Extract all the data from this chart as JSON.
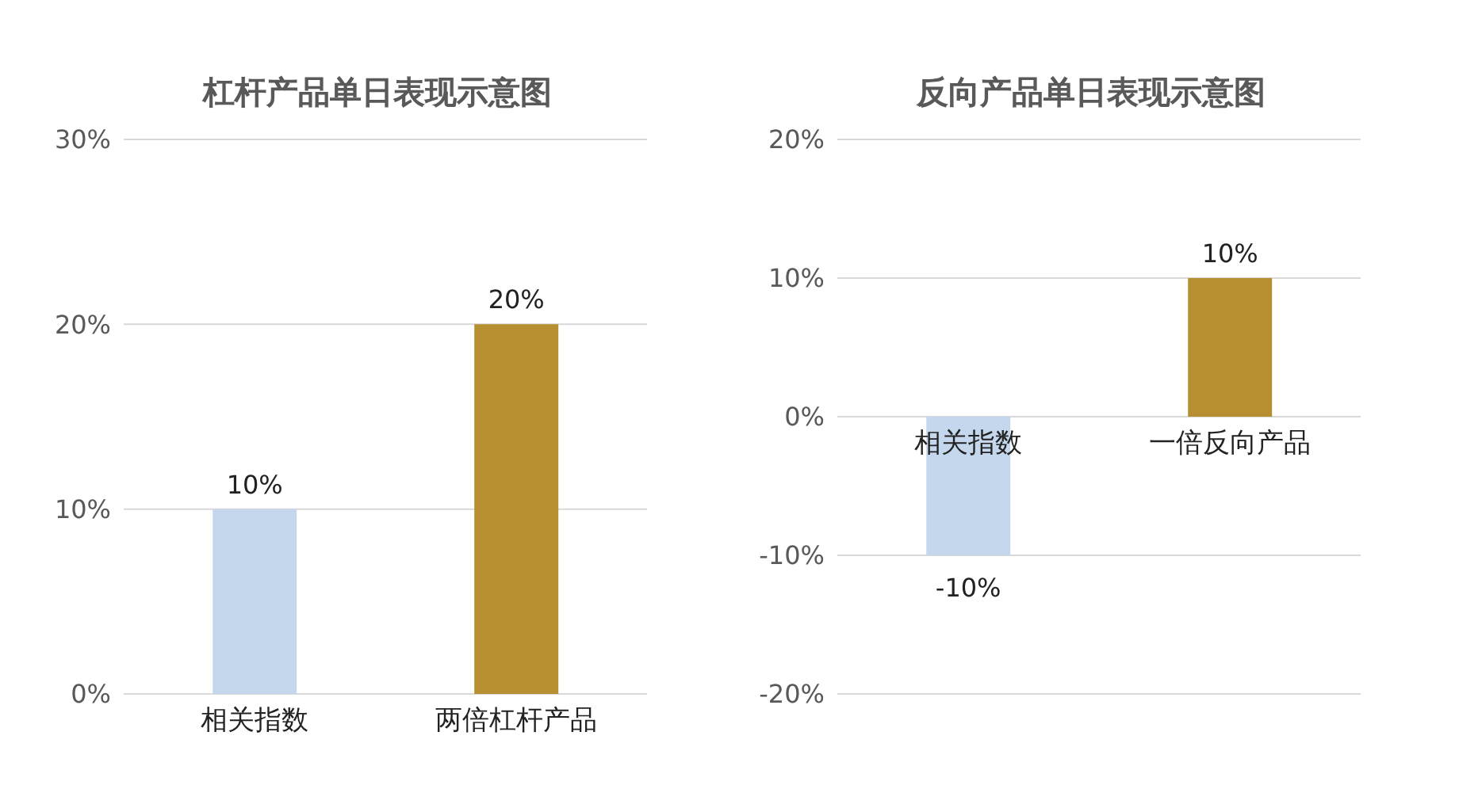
{
  "chart_data": [
    {
      "type": "bar",
      "title": "杠杆产品单日表现示意图",
      "categories": [
        "相关指数",
        "两倍杠杆产品"
      ],
      "values": [
        10,
        20
      ],
      "colors": [
        "#c5d7ec",
        "#b58f32"
      ],
      "value_labels": [
        "10%",
        "20%"
      ],
      "ylim": [
        0,
        30
      ],
      "yticks": [
        {
          "value": 0,
          "label": "0%"
        },
        {
          "value": 10,
          "label": "10%"
        },
        {
          "value": 20,
          "label": "20%"
        },
        {
          "value": 30,
          "label": "30%"
        }
      ],
      "grid": "y"
    },
    {
      "type": "bar",
      "title": "反向产品单日表现示意图",
      "categories": [
        "相关指数",
        "一倍反向产品"
      ],
      "values": [
        -10,
        10
      ],
      "colors": [
        "#c5d7ec",
        "#b58f32"
      ],
      "value_labels": [
        "-10%",
        "10%"
      ],
      "ylim": [
        -20,
        20
      ],
      "yticks": [
        {
          "value": -20,
          "label": "-20%"
        },
        {
          "value": -10,
          "label": "-10%"
        },
        {
          "value": 0,
          "label": "0%"
        },
        {
          "value": 10,
          "label": "10%"
        },
        {
          "value": 20,
          "label": "20%"
        }
      ],
      "grid": "y"
    }
  ]
}
